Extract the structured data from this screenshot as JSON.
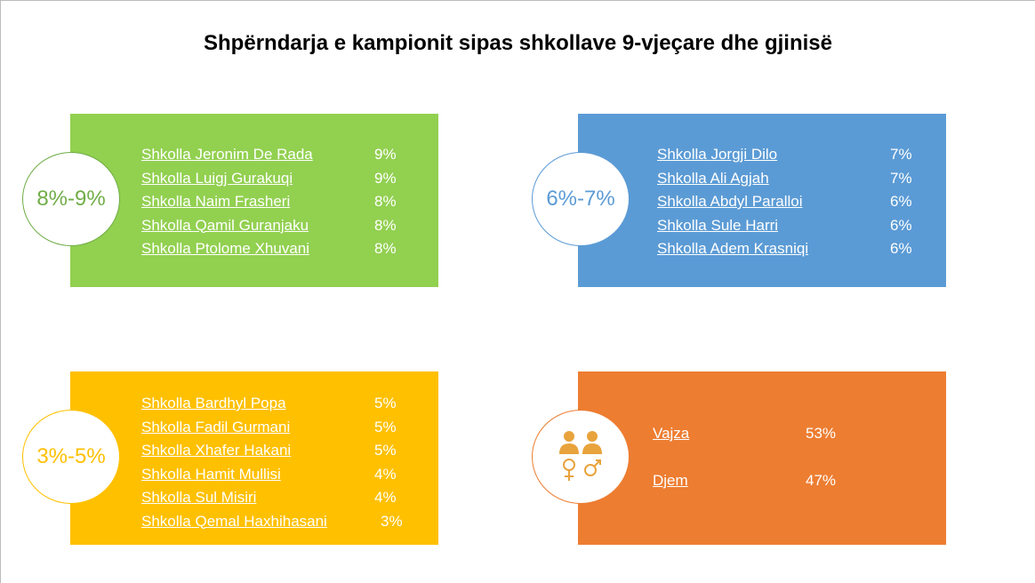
{
  "title": "Shpërndarja e kampionit sipas shkollave 9-vjeçare dhe gjinisë",
  "panels": [
    {
      "range": "8%-9%",
      "items": [
        {
          "name": "Shkolla Jeronim De Rada",
          "value": "9%"
        },
        {
          "name": "Shkolla Luigj Gurakuqi",
          "value": "9%"
        },
        {
          "name": "Shkolla Naim Frasheri",
          "value": "8%"
        },
        {
          "name": "Shkolla Qamil Guranjaku",
          "value": "8%"
        },
        {
          "name": "Shkolla Ptolome Xhuvani",
          "value": "8%"
        }
      ]
    },
    {
      "range": "6%-7%",
      "items": [
        {
          "name": "Shkolla Jorgji Dilo",
          "value": "7%"
        },
        {
          "name": "Shkolla Ali Agjah",
          "value": "7%"
        },
        {
          "name": "Shkolla Abdyl Paralloi",
          "value": "6%"
        },
        {
          "name": "Shkolla Sule Harri",
          "value": "6%"
        },
        {
          "name": "Shkolla Adem Krasniqi",
          "value": "6%"
        }
      ]
    },
    {
      "range": "3%-5%",
      "items": [
        {
          "name": "Shkolla Bardhyl Popa",
          "value": "5%"
        },
        {
          "name": "Shkolla Fadil Gurmani",
          "value": "5%"
        },
        {
          "name": "Shkolla Xhafer Hakani",
          "value": "5%"
        },
        {
          "name": "Shkolla Hamit Mullisi",
          "value": "4%"
        },
        {
          "name": "Shkolla Sul Misiri",
          "value": "4%"
        },
        {
          "name": "Shkolla Qemal Haxhihasani",
          "value": "3%"
        }
      ]
    }
  ],
  "gender": [
    {
      "name": "Vajza",
      "value": "53%"
    },
    {
      "name": "Djem",
      "value": "47%"
    }
  ]
}
